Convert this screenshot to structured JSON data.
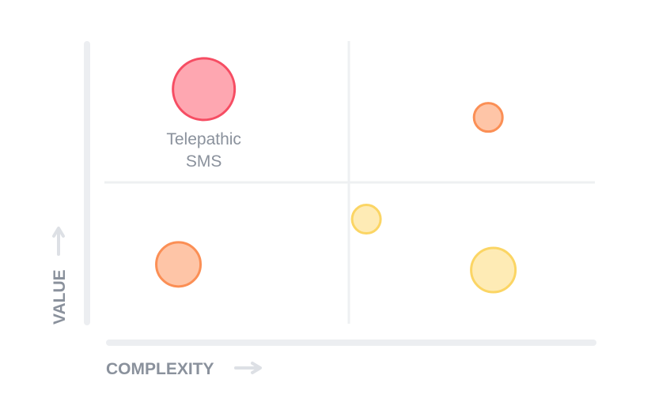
{
  "chart_data": {
    "type": "scatter",
    "title": "",
    "xlabel": "COMPLEXITY",
    "ylabel": "VALUE",
    "xlim": [
      0,
      100
    ],
    "ylim": [
      0,
      100
    ],
    "quadrant_split": {
      "x": 50,
      "y": 50
    },
    "grid": false,
    "points": [
      {
        "x": 23,
        "y": 83,
        "size": 39,
        "category": "high",
        "label_lines": [
          "Telepathic",
          "SMS"
        ]
      },
      {
        "x": 79,
        "y": 73,
        "size": 18,
        "category": "medium",
        "label_lines": []
      },
      {
        "x": 18,
        "y": 21,
        "size": 28,
        "category": "medium",
        "label_lines": []
      },
      {
        "x": 55,
        "y": 37,
        "size": 18,
        "category": "low",
        "label_lines": []
      },
      {
        "x": 80,
        "y": 19,
        "size": 28,
        "category": "low",
        "label_lines": []
      }
    ],
    "colors": {
      "high": {
        "fill": "#fea7b1",
        "stroke": "#f64d63"
      },
      "medium": {
        "fill": "#fec5a7",
        "stroke": "#fb8f55"
      },
      "low": {
        "fill": "#feebb5",
        "stroke": "#fbd564"
      },
      "axis": "#eceef1",
      "divider": "#eef0f2",
      "text": "#8a919c",
      "arrow": "#dde0e5"
    }
  }
}
